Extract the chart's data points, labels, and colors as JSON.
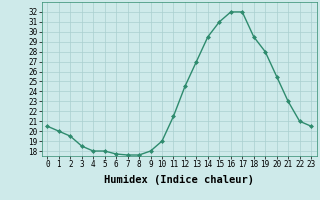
{
  "title": "",
  "xlabel": "Humidex (Indice chaleur)",
  "x": [
    0,
    1,
    2,
    3,
    4,
    5,
    6,
    7,
    8,
    9,
    10,
    11,
    12,
    13,
    14,
    15,
    16,
    17,
    18,
    19,
    20,
    21,
    22,
    23
  ],
  "y": [
    20.5,
    20.0,
    19.5,
    18.5,
    18.0,
    18.0,
    17.7,
    17.6,
    17.6,
    18.0,
    19.0,
    21.5,
    24.5,
    27.0,
    29.5,
    31.0,
    32.0,
    32.0,
    29.5,
    28.0,
    25.5,
    23.0,
    21.0,
    20.5
  ],
  "xlim": [
    -0.5,
    23.5
  ],
  "ylim": [
    17.5,
    33.0
  ],
  "yticks": [
    18,
    19,
    20,
    21,
    22,
    23,
    24,
    25,
    26,
    27,
    28,
    29,
    30,
    31,
    32
  ],
  "xticks": [
    0,
    1,
    2,
    3,
    4,
    5,
    6,
    7,
    8,
    9,
    10,
    11,
    12,
    13,
    14,
    15,
    16,
    17,
    18,
    19,
    20,
    21,
    22,
    23
  ],
  "line_color": "#2e8b6e",
  "marker_color": "#2e8b6e",
  "bg_color": "#ceeaea",
  "grid_color": "#aacfcf",
  "tick_label_fontsize": 5.5,
  "xlabel_fontsize": 7.5
}
